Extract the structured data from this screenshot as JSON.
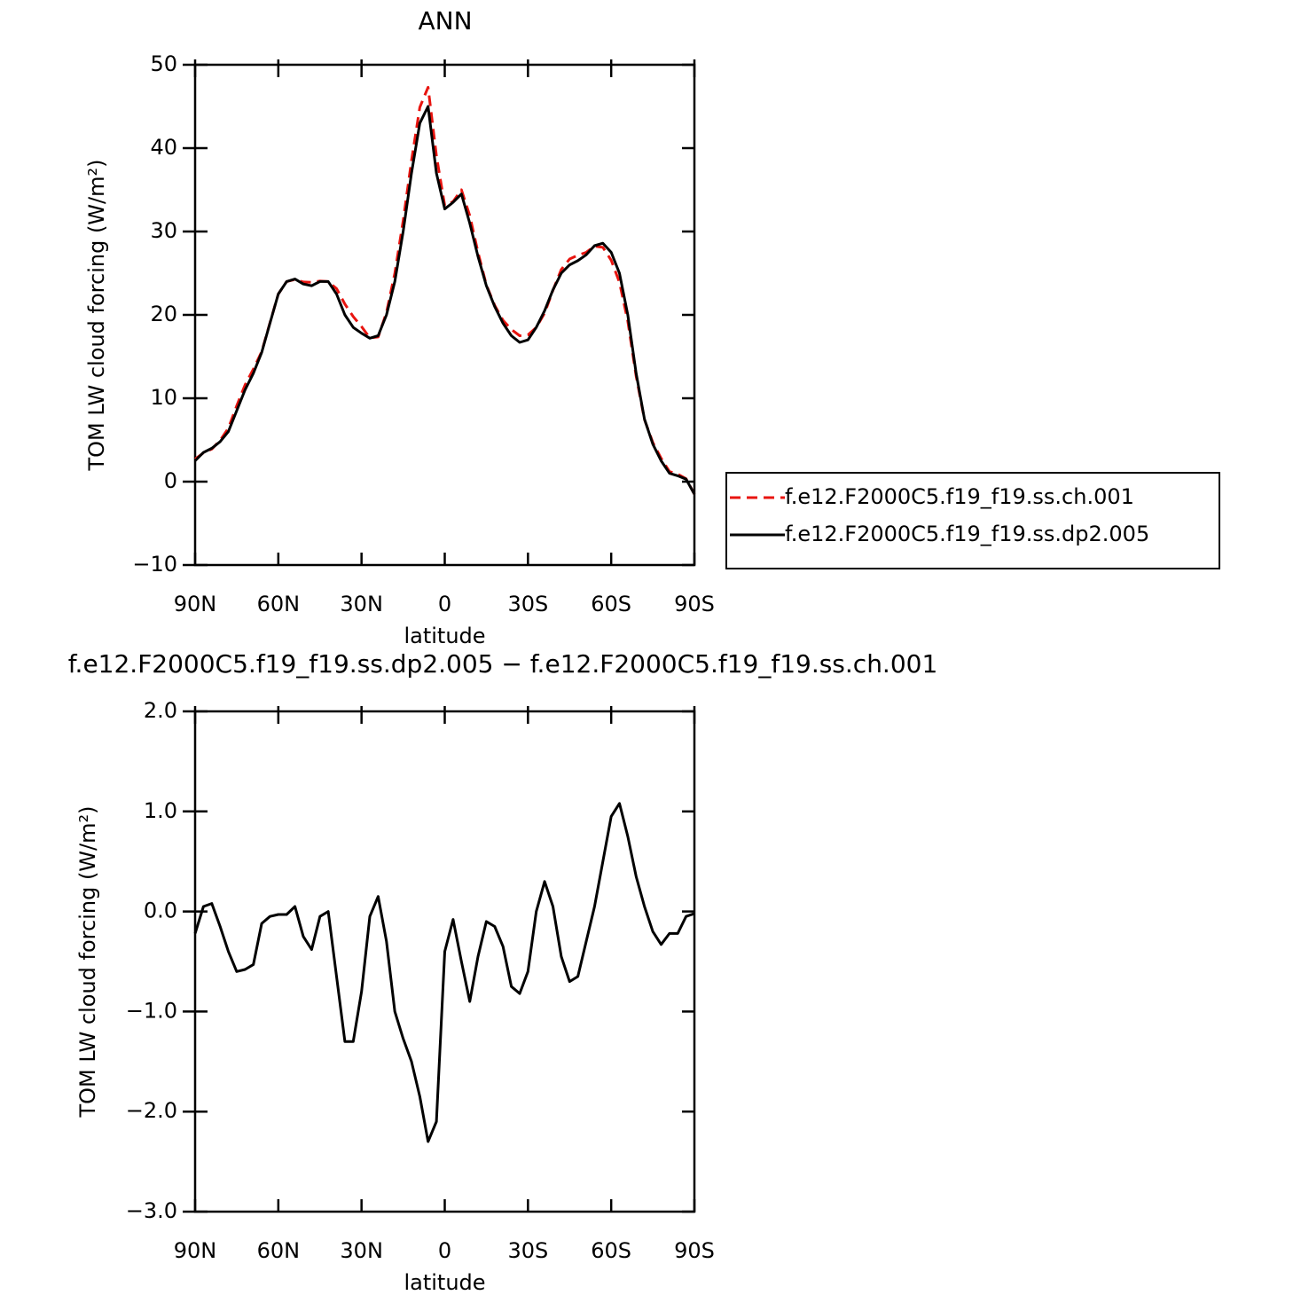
{
  "chart_data": [
    {
      "type": "line",
      "title": "ANN",
      "xlabel": "latitude",
      "ylabel": "TOM LW cloud forcing (W/m²)",
      "x": [
        90,
        87,
        84,
        81,
        78,
        75,
        72,
        69,
        66,
        63,
        60,
        57,
        54,
        51,
        48,
        45,
        42,
        39,
        36,
        33,
        30,
        27,
        24,
        21,
        18,
        15,
        12,
        9,
        6,
        3,
        0,
        -3,
        -6,
        -9,
        -12,
        -15,
        -18,
        -21,
        -24,
        -27,
        -30,
        -33,
        -36,
        -39,
        -42,
        -45,
        -48,
        -51,
        -54,
        -57,
        -60,
        -63,
        -66,
        -69,
        -72,
        -75,
        -78,
        -81,
        -84,
        -87,
        -90
      ],
      "series": [
        {
          "name": "f.e12.F2000C5.f19_f19.ss.ch.001",
          "color": "#e8140f",
          "line_style": "dashed",
          "values": [
            2.7,
            3.45,
            3.9,
            4.95,
            6.4,
            9.1,
            11.6,
            13.5,
            15.6,
            19.05,
            22.5,
            24.0,
            24.25,
            23.95,
            23.9,
            24.05,
            24.0,
            23.15,
            21.3,
            19.8,
            18.6,
            17.25,
            17.35,
            20.3,
            25.0,
            31.3,
            38.5,
            44.9,
            47.3,
            39.1,
            33.1,
            33.6,
            35.0,
            31.9,
            27.5,
            23.6,
            21.15,
            19.35,
            18.25,
            17.5,
            17.6,
            18.5,
            20.2,
            22.95,
            25.45,
            26.7,
            27.15,
            27.5,
            28.25,
            28.1,
            26.55,
            23.9,
            19.25,
            12.65,
            7.45,
            4.7,
            2.8,
            1.2,
            0.9,
            0.35,
            -1.5
          ]
        },
        {
          "name": "f.e12.F2000C5.f19_f19.ss.dp2.005",
          "color": "#000000",
          "line_style": "solid",
          "values": [
            2.5,
            3.5,
            4,
            4.8,
            6,
            8.5,
            11,
            13,
            15.5,
            19,
            22.5,
            24,
            24.3,
            23.7,
            23.5,
            24,
            24,
            22.5,
            20,
            18.5,
            17.8,
            17.2,
            17.5,
            20,
            24,
            30,
            37,
            43,
            45,
            37,
            32.7,
            33.5,
            34.5,
            31,
            27,
            23.5,
            21,
            19,
            17.5,
            16.7,
            17,
            18.5,
            20.5,
            23,
            25,
            26,
            26.5,
            27.2,
            28.3,
            28.6,
            27.5,
            25,
            20,
            13,
            7.5,
            4.5,
            2.5,
            1,
            0.7,
            0.3,
            -1.5
          ]
        }
      ],
      "xlim": [
        90,
        -90
      ],
      "xticks": [
        {
          "value": 90,
          "label": "90N"
        },
        {
          "value": 60,
          "label": "60N"
        },
        {
          "value": 30,
          "label": "30N"
        },
        0,
        {
          "value": -30,
          "label": "30S"
        },
        {
          "value": -60,
          "label": "60S"
        },
        {
          "value": -90,
          "label": "90S"
        }
      ],
      "ylim": [
        -10,
        50
      ],
      "yticks": [
        {
          "value": -10,
          "label": "−10"
        },
        0,
        10,
        20,
        30,
        40,
        50
      ],
      "legend": "right"
    },
    {
      "type": "line",
      "title": "f.e12.F2000C5.f19_f19.ss.dp2.005 − f.e12.F2000C5.f19_f19.ss.ch.001",
      "xlabel": "latitude",
      "ylabel": "TOM LW cloud forcing (W/m²)",
      "x": [
        90,
        87,
        84,
        81,
        78,
        75,
        72,
        69,
        66,
        63,
        60,
        57,
        54,
        51,
        48,
        45,
        42,
        39,
        36,
        33,
        30,
        27,
        24,
        21,
        18,
        15,
        12,
        9,
        6,
        3,
        0,
        -3,
        -6,
        -9,
        -12,
        -15,
        -18,
        -21,
        -24,
        -27,
        -30,
        -33,
        -36,
        -39,
        -42,
        -45,
        -48,
        -51,
        -54,
        -57,
        -60,
        -63,
        -66,
        -69,
        -72,
        -75,
        -78,
        -81,
        -84,
        -87,
        -90
      ],
      "series": [
        {
          "color": "#000000",
          "line_style": "solid",
          "values": [
            -0.22,
            0.05,
            0.08,
            -0.15,
            -0.4,
            -0.6,
            -0.58,
            -0.53,
            -0.12,
            -0.05,
            -0.03,
            -0.03,
            0.05,
            -0.25,
            -0.38,
            -0.05,
            0.0,
            -0.65,
            -1.3,
            -1.3,
            -0.8,
            -0.05,
            0.15,
            -0.3,
            -1.0,
            -1.27,
            -1.5,
            -1.85,
            -2.3,
            -2.1,
            -0.4,
            -0.08,
            -0.5,
            -0.9,
            -0.45,
            -0.1,
            -0.15,
            -0.35,
            -0.75,
            -0.82,
            -0.6,
            0.0,
            0.3,
            0.05,
            -0.45,
            -0.7,
            -0.65,
            -0.3,
            0.05,
            0.5,
            0.95,
            1.08,
            0.75,
            0.35,
            0.05,
            -0.2,
            -0.33,
            -0.22,
            -0.22,
            -0.05,
            -0.02
          ]
        }
      ],
      "xlim": [
        90,
        -90
      ],
      "xticks": [
        {
          "value": 90,
          "label": "90N"
        },
        {
          "value": 60,
          "label": "60N"
        },
        {
          "value": 30,
          "label": "30N"
        },
        0,
        {
          "value": -30,
          "label": "30S"
        },
        {
          "value": -60,
          "label": "60S"
        },
        {
          "value": -90,
          "label": "90S"
        }
      ],
      "ylim": [
        -3,
        2
      ],
      "yticks": [
        {
          "value": -3,
          "label": "−3.0"
        },
        {
          "value": -2,
          "label": "−2.0"
        },
        {
          "value": -1,
          "label": "−1.0"
        },
        {
          "value": 0,
          "label": "0.0"
        },
        {
          "value": 1,
          "label": "1.0"
        },
        {
          "value": 2,
          "label": "2.0"
        }
      ]
    }
  ]
}
